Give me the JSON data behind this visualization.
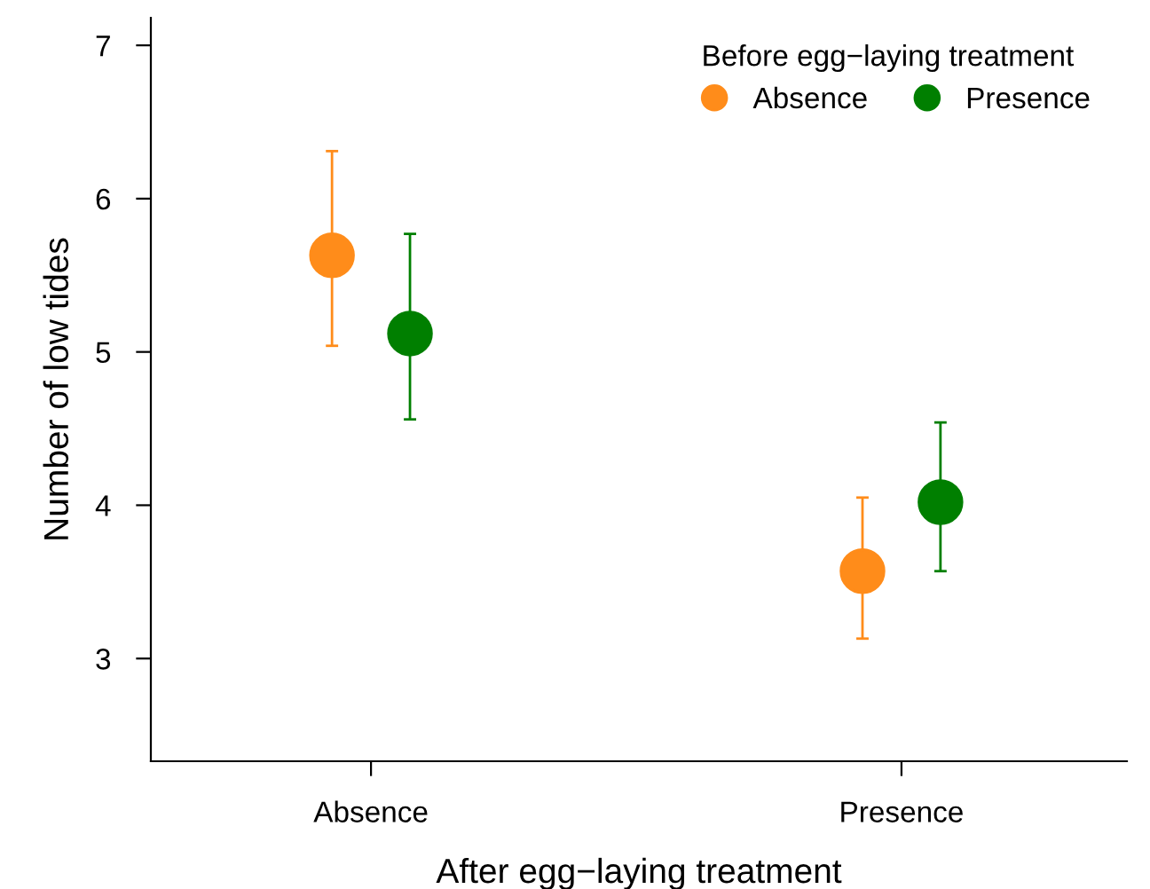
{
  "chart_data": {
    "type": "scatter",
    "xlabel": "After egg−laying treatment",
    "ylabel": "Number of low tides",
    "legend_title": "Before egg−laying treatment",
    "categories": [
      "Absence",
      "Presence"
    ],
    "series": [
      {
        "name": "Absence",
        "color": "#ff8c1a",
        "values": [
          5.63,
          3.57
        ],
        "errors": [
          [
            5.04,
            6.31
          ],
          [
            3.13,
            4.05
          ]
        ]
      },
      {
        "name": "Presence",
        "color": "#007f00",
        "values": [
          5.12,
          4.02
        ],
        "errors": [
          [
            4.56,
            5.77
          ],
          [
            3.57,
            4.54
          ]
        ]
      }
    ],
    "ylim": [
      2.33,
      7.18
    ],
    "yticks": [
      3,
      4,
      5,
      6,
      7
    ],
    "grid": false,
    "legend": "top right",
    "marker": "circle"
  }
}
